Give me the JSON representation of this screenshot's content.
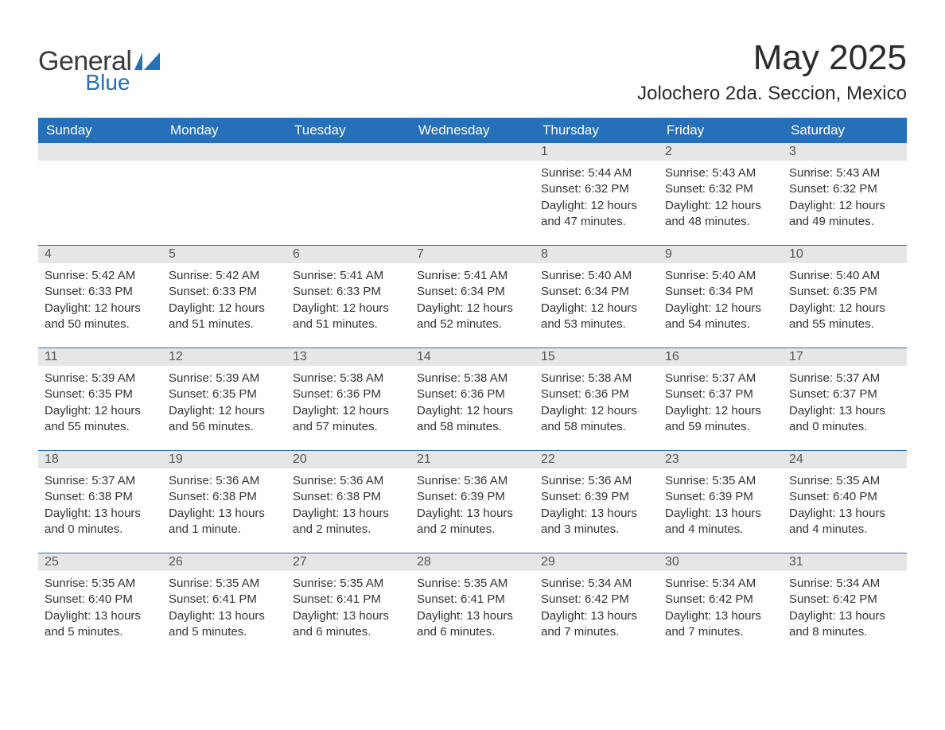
{
  "brand": {
    "word1": "General",
    "word2": "Blue",
    "text_color": "#3a3a3a",
    "accent_color": "#2570b8"
  },
  "header": {
    "month_title": "May 2025",
    "location": "Jolochero 2da. Seccion, Mexico"
  },
  "calendar": {
    "header_bg": "#2570b8",
    "header_fg": "#ffffff",
    "daynum_bg": "#e6e6e6",
    "rule_color": "#2570b8",
    "days_of_week": [
      "Sunday",
      "Monday",
      "Tuesday",
      "Wednesday",
      "Thursday",
      "Friday",
      "Saturday"
    ],
    "weeks": [
      [
        null,
        null,
        null,
        null,
        {
          "n": "1",
          "sunrise": "Sunrise: 5:44 AM",
          "sunset": "Sunset: 6:32 PM",
          "daylight": "Daylight: 12 hours and 47 minutes."
        },
        {
          "n": "2",
          "sunrise": "Sunrise: 5:43 AM",
          "sunset": "Sunset: 6:32 PM",
          "daylight": "Daylight: 12 hours and 48 minutes."
        },
        {
          "n": "3",
          "sunrise": "Sunrise: 5:43 AM",
          "sunset": "Sunset: 6:32 PM",
          "daylight": "Daylight: 12 hours and 49 minutes."
        }
      ],
      [
        {
          "n": "4",
          "sunrise": "Sunrise: 5:42 AM",
          "sunset": "Sunset: 6:33 PM",
          "daylight": "Daylight: 12 hours and 50 minutes."
        },
        {
          "n": "5",
          "sunrise": "Sunrise: 5:42 AM",
          "sunset": "Sunset: 6:33 PM",
          "daylight": "Daylight: 12 hours and 51 minutes."
        },
        {
          "n": "6",
          "sunrise": "Sunrise: 5:41 AM",
          "sunset": "Sunset: 6:33 PM",
          "daylight": "Daylight: 12 hours and 51 minutes."
        },
        {
          "n": "7",
          "sunrise": "Sunrise: 5:41 AM",
          "sunset": "Sunset: 6:34 PM",
          "daylight": "Daylight: 12 hours and 52 minutes."
        },
        {
          "n": "8",
          "sunrise": "Sunrise: 5:40 AM",
          "sunset": "Sunset: 6:34 PM",
          "daylight": "Daylight: 12 hours and 53 minutes."
        },
        {
          "n": "9",
          "sunrise": "Sunrise: 5:40 AM",
          "sunset": "Sunset: 6:34 PM",
          "daylight": "Daylight: 12 hours and 54 minutes."
        },
        {
          "n": "10",
          "sunrise": "Sunrise: 5:40 AM",
          "sunset": "Sunset: 6:35 PM",
          "daylight": "Daylight: 12 hours and 55 minutes."
        }
      ],
      [
        {
          "n": "11",
          "sunrise": "Sunrise: 5:39 AM",
          "sunset": "Sunset: 6:35 PM",
          "daylight": "Daylight: 12 hours and 55 minutes."
        },
        {
          "n": "12",
          "sunrise": "Sunrise: 5:39 AM",
          "sunset": "Sunset: 6:35 PM",
          "daylight": "Daylight: 12 hours and 56 minutes."
        },
        {
          "n": "13",
          "sunrise": "Sunrise: 5:38 AM",
          "sunset": "Sunset: 6:36 PM",
          "daylight": "Daylight: 12 hours and 57 minutes."
        },
        {
          "n": "14",
          "sunrise": "Sunrise: 5:38 AM",
          "sunset": "Sunset: 6:36 PM",
          "daylight": "Daylight: 12 hours and 58 minutes."
        },
        {
          "n": "15",
          "sunrise": "Sunrise: 5:38 AM",
          "sunset": "Sunset: 6:36 PM",
          "daylight": "Daylight: 12 hours and 58 minutes."
        },
        {
          "n": "16",
          "sunrise": "Sunrise: 5:37 AM",
          "sunset": "Sunset: 6:37 PM",
          "daylight": "Daylight: 12 hours and 59 minutes."
        },
        {
          "n": "17",
          "sunrise": "Sunrise: 5:37 AM",
          "sunset": "Sunset: 6:37 PM",
          "daylight": "Daylight: 13 hours and 0 minutes."
        }
      ],
      [
        {
          "n": "18",
          "sunrise": "Sunrise: 5:37 AM",
          "sunset": "Sunset: 6:38 PM",
          "daylight": "Daylight: 13 hours and 0 minutes."
        },
        {
          "n": "19",
          "sunrise": "Sunrise: 5:36 AM",
          "sunset": "Sunset: 6:38 PM",
          "daylight": "Daylight: 13 hours and 1 minute."
        },
        {
          "n": "20",
          "sunrise": "Sunrise: 5:36 AM",
          "sunset": "Sunset: 6:38 PM",
          "daylight": "Daylight: 13 hours and 2 minutes."
        },
        {
          "n": "21",
          "sunrise": "Sunrise: 5:36 AM",
          "sunset": "Sunset: 6:39 PM",
          "daylight": "Daylight: 13 hours and 2 minutes."
        },
        {
          "n": "22",
          "sunrise": "Sunrise: 5:36 AM",
          "sunset": "Sunset: 6:39 PM",
          "daylight": "Daylight: 13 hours and 3 minutes."
        },
        {
          "n": "23",
          "sunrise": "Sunrise: 5:35 AM",
          "sunset": "Sunset: 6:39 PM",
          "daylight": "Daylight: 13 hours and 4 minutes."
        },
        {
          "n": "24",
          "sunrise": "Sunrise: 5:35 AM",
          "sunset": "Sunset: 6:40 PM",
          "daylight": "Daylight: 13 hours and 4 minutes."
        }
      ],
      [
        {
          "n": "25",
          "sunrise": "Sunrise: 5:35 AM",
          "sunset": "Sunset: 6:40 PM",
          "daylight": "Daylight: 13 hours and 5 minutes."
        },
        {
          "n": "26",
          "sunrise": "Sunrise: 5:35 AM",
          "sunset": "Sunset: 6:41 PM",
          "daylight": "Daylight: 13 hours and 5 minutes."
        },
        {
          "n": "27",
          "sunrise": "Sunrise: 5:35 AM",
          "sunset": "Sunset: 6:41 PM",
          "daylight": "Daylight: 13 hours and 6 minutes."
        },
        {
          "n": "28",
          "sunrise": "Sunrise: 5:35 AM",
          "sunset": "Sunset: 6:41 PM",
          "daylight": "Daylight: 13 hours and 6 minutes."
        },
        {
          "n": "29",
          "sunrise": "Sunrise: 5:34 AM",
          "sunset": "Sunset: 6:42 PM",
          "daylight": "Daylight: 13 hours and 7 minutes."
        },
        {
          "n": "30",
          "sunrise": "Sunrise: 5:34 AM",
          "sunset": "Sunset: 6:42 PM",
          "daylight": "Daylight: 13 hours and 7 minutes."
        },
        {
          "n": "31",
          "sunrise": "Sunrise: 5:34 AM",
          "sunset": "Sunset: 6:42 PM",
          "daylight": "Daylight: 13 hours and 8 minutes."
        }
      ]
    ]
  }
}
